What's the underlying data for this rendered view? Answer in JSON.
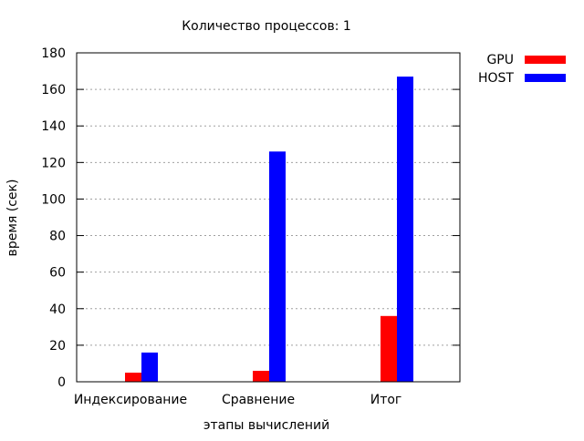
{
  "chart_data": {
    "type": "bar",
    "title": "Количество процессов: 1",
    "xlabel": "этапы вычислений",
    "ylabel": "время (сек)",
    "categories": [
      "Индексирование",
      "Сравнение",
      "Итог"
    ],
    "series": [
      {
        "name": "GPU",
        "color": "#ff0000",
        "values": [
          5,
          6,
          36
        ]
      },
      {
        "name": "HOST",
        "color": "#0000ff",
        "values": [
          16,
          126,
          167
        ]
      }
    ],
    "ylim": [
      0,
      180
    ],
    "yticks": [
      0,
      20,
      40,
      60,
      80,
      100,
      120,
      140,
      160,
      180
    ],
    "grid": "horizontal dotted",
    "legend_position": "top-right outside"
  }
}
